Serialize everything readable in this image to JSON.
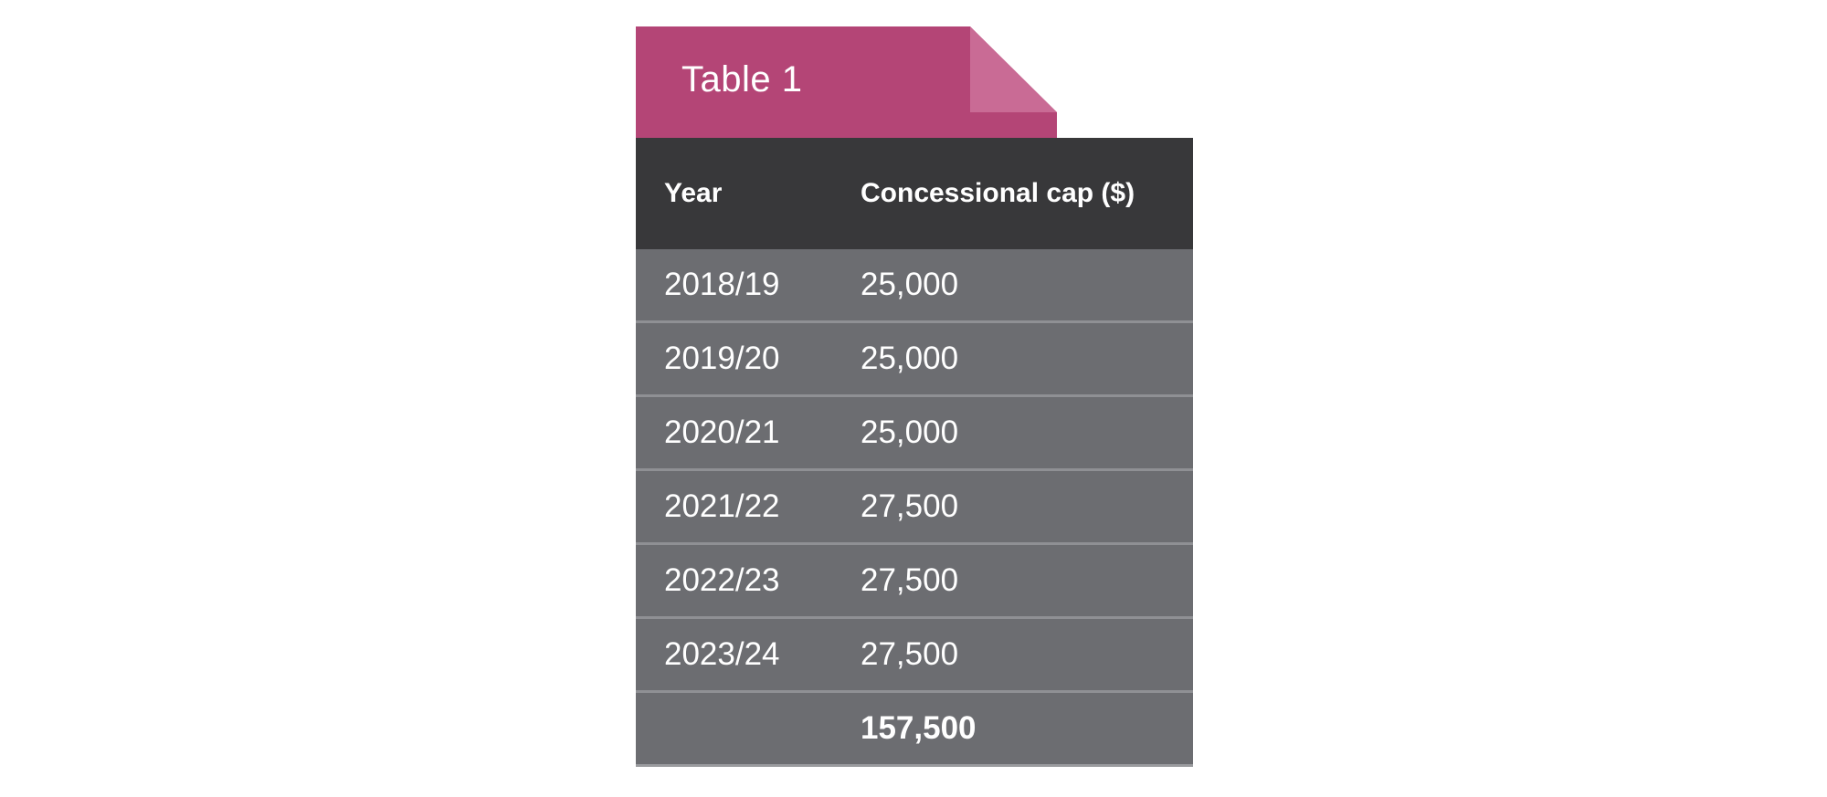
{
  "tab": {
    "title": "Table 1",
    "color": "#b44576",
    "fold_color": "#c96b95"
  },
  "table": {
    "headers": [
      "Year",
      "Concessional cap ($)"
    ],
    "rows": [
      {
        "year": "2018/19",
        "cap": "25,000"
      },
      {
        "year": "2019/20",
        "cap": "25,000"
      },
      {
        "year": "2020/21",
        "cap": "25,000"
      },
      {
        "year": "2021/22",
        "cap": "27,500"
      },
      {
        "year": "2022/23",
        "cap": "27,500"
      },
      {
        "year": "2023/24",
        "cap": "27,500"
      }
    ],
    "total": {
      "year": "",
      "cap": "157,500"
    },
    "header_bg": "#38383a",
    "body_bg": "#6c6d71"
  }
}
